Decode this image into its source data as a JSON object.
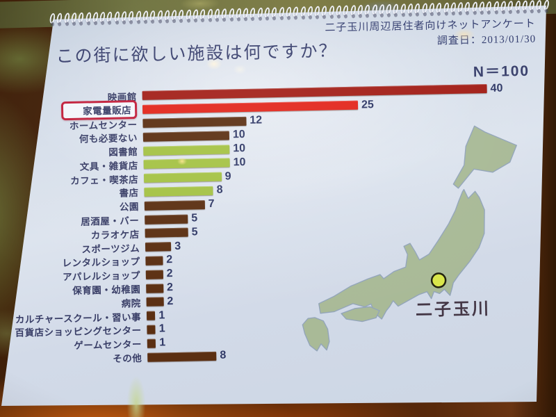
{
  "page_header": {
    "survey_title": "二子玉川周辺居住者向けネットアンケート",
    "survey_date": "調査日：2013/01/30"
  },
  "title": "この街に欲しい施設は何ですか？",
  "sample_size": "N＝100",
  "chart_data": {
    "type": "bar",
    "orientation": "horizontal",
    "title": "この街に欲しい施設は何ですか？",
    "sample_size_label": "N=100",
    "categories": [
      "映画館",
      "家電量販店",
      "ホームセンター",
      "何も必要ない",
      "図書館",
      "文具・雑貨店",
      "カフェ・喫茶店",
      "書店",
      "公園",
      "居酒屋・バー",
      "カラオケ店",
      "スポーツジム",
      "レンタルショップ",
      "アパレルショップ",
      "保育園・幼稚園",
      "病院",
      "カルチャースクール・習い事",
      "百貨店ショッピングセンター",
      "ゲームセンター",
      "その他"
    ],
    "values": [
      40,
      25,
      12,
      10,
      10,
      10,
      9,
      8,
      7,
      5,
      5,
      3,
      2,
      2,
      2,
      2,
      1,
      1,
      1,
      8
    ],
    "colors": [
      "#a32019",
      "#e2261c",
      "#5b2f12",
      "#5b2f12",
      "#a4c244",
      "#a4c244",
      "#a4c244",
      "#a4c244",
      "#5b2f12",
      "#5b2f12",
      "#5b2f12",
      "#5b2f12",
      "#5b2f12",
      "#5b2f12",
      "#5b2f12",
      "#5b2f12",
      "#5b2f12",
      "#5b2f12",
      "#5b2f12",
      "#5b2f12"
    ],
    "value_labels_shown": true,
    "xlim": [
      0,
      42
    ],
    "grid": false,
    "legend": false,
    "highlighted_category": "家電量販店",
    "highlight_box_color": "#c2203c"
  },
  "map": {
    "land_color": "#a9ba97",
    "outline_color": "#93a5ba",
    "marker_color": "#d9e64a",
    "marker_label": "二子玉川"
  }
}
